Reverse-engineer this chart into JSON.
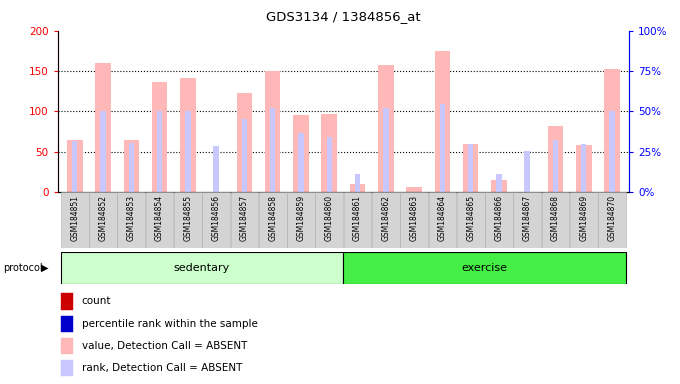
{
  "title": "GDS3134 / 1384856_at",
  "samples": [
    "GSM184851",
    "GSM184852",
    "GSM184853",
    "GSM184854",
    "GSM184855",
    "GSM184856",
    "GSM184857",
    "GSM184858",
    "GSM184859",
    "GSM184860",
    "GSM184861",
    "GSM184862",
    "GSM184863",
    "GSM184864",
    "GSM184865",
    "GSM184866",
    "GSM184867",
    "GSM184868",
    "GSM184869",
    "GSM184870"
  ],
  "absent_value": [
    65,
    160,
    65,
    137,
    141,
    0,
    123,
    150,
    95,
    97,
    10,
    158,
    6,
    175,
    60,
    15,
    0,
    82,
    58,
    152
  ],
  "absent_rank": [
    63,
    101,
    61,
    100,
    101,
    57,
    90,
    104,
    73,
    68,
    22,
    104,
    0,
    109,
    59,
    22,
    51,
    65,
    59,
    101
  ],
  "sedentary_count": 10,
  "exercise_count": 10,
  "ylim_left": [
    0,
    200
  ],
  "ylim_right": [
    0,
    100
  ],
  "yticks_left": [
    0,
    50,
    100,
    150,
    200
  ],
  "yticks_right": [
    0,
    25,
    50,
    75,
    100
  ],
  "ytick_labels_right": [
    "0%",
    "25%",
    "50%",
    "75%",
    "100%"
  ],
  "sedentary_color": "#ccffcc",
  "exercise_color": "#44ee44",
  "bar_color_absent_value": "#ffb8b8",
  "bar_color_absent_rank": "#c8c8ff",
  "bar_color_count": "#cc0000",
  "bar_color_rank": "#0000cc",
  "plot_bg": "white",
  "xlabel_bg": "#d4d4d4",
  "xlabel_border": "#aaaaaa"
}
